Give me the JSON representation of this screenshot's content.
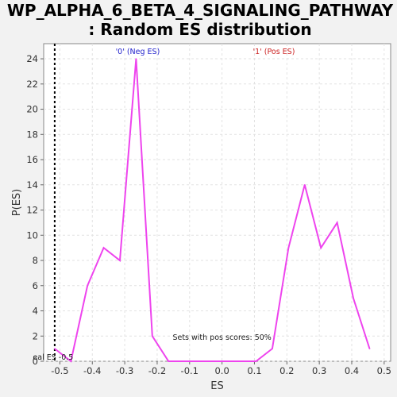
{
  "chart_data": {
    "type": "line",
    "title_line1": "WP_ALPHA_6_BETA_4_SIGNALING_PATHWAY",
    "title_line2": ": Random ES distribution",
    "xlabel": "ES",
    "ylabel": "P(ES)",
    "xlim": [
      -0.55,
      0.52
    ],
    "ylim": [
      0,
      25.2
    ],
    "xticks": [
      -0.5,
      -0.4,
      -0.3,
      -0.2,
      -0.1,
      0.0,
      0.1,
      0.2,
      0.3,
      0.4,
      0.5
    ],
    "xtick_labels": [
      "-0.5",
      "-0.4",
      "-0.3",
      "-0.2",
      "-0.1",
      "0.0",
      "0.1",
      "0.2",
      "0.3",
      "0.4",
      "0.5"
    ],
    "yticks": [
      0,
      2,
      4,
      6,
      8,
      10,
      12,
      14,
      16,
      18,
      20,
      22,
      24
    ],
    "ytick_labels": [
      "0",
      "2",
      "4",
      "6",
      "8",
      "10",
      "12",
      "14",
      "16",
      "18",
      "20",
      "22",
      "24"
    ],
    "grid": true,
    "series": [
      {
        "color": "#ee44ee",
        "x": [
          -0.516,
          -0.466,
          -0.415,
          -0.365,
          -0.315,
          -0.265,
          -0.215,
          -0.165,
          -0.115,
          -0.065,
          -0.015,
          0.035,
          0.085,
          0.105,
          0.155,
          0.205,
          0.255,
          0.305,
          0.355,
          0.405,
          0.455
        ],
        "y": [
          1,
          0,
          6,
          9,
          8,
          24,
          2,
          0,
          0,
          0,
          0,
          0,
          0,
          0,
          1,
          9,
          14,
          9,
          11,
          5,
          1
        ]
      }
    ],
    "real_es": {
      "x": -0.516,
      "label": "eal ES -0.5"
    },
    "neg_label": {
      "text": "'0' (Neg ES)",
      "color": "#2222cc",
      "x": -0.26
    },
    "pos_label": {
      "text": "'1' (Pos ES)",
      "color": "#cc2222",
      "x": 0.16
    },
    "pos_scores_label": {
      "text": "Sets with pos scores: 50%",
      "x": 0.0,
      "y": 1.9
    }
  }
}
